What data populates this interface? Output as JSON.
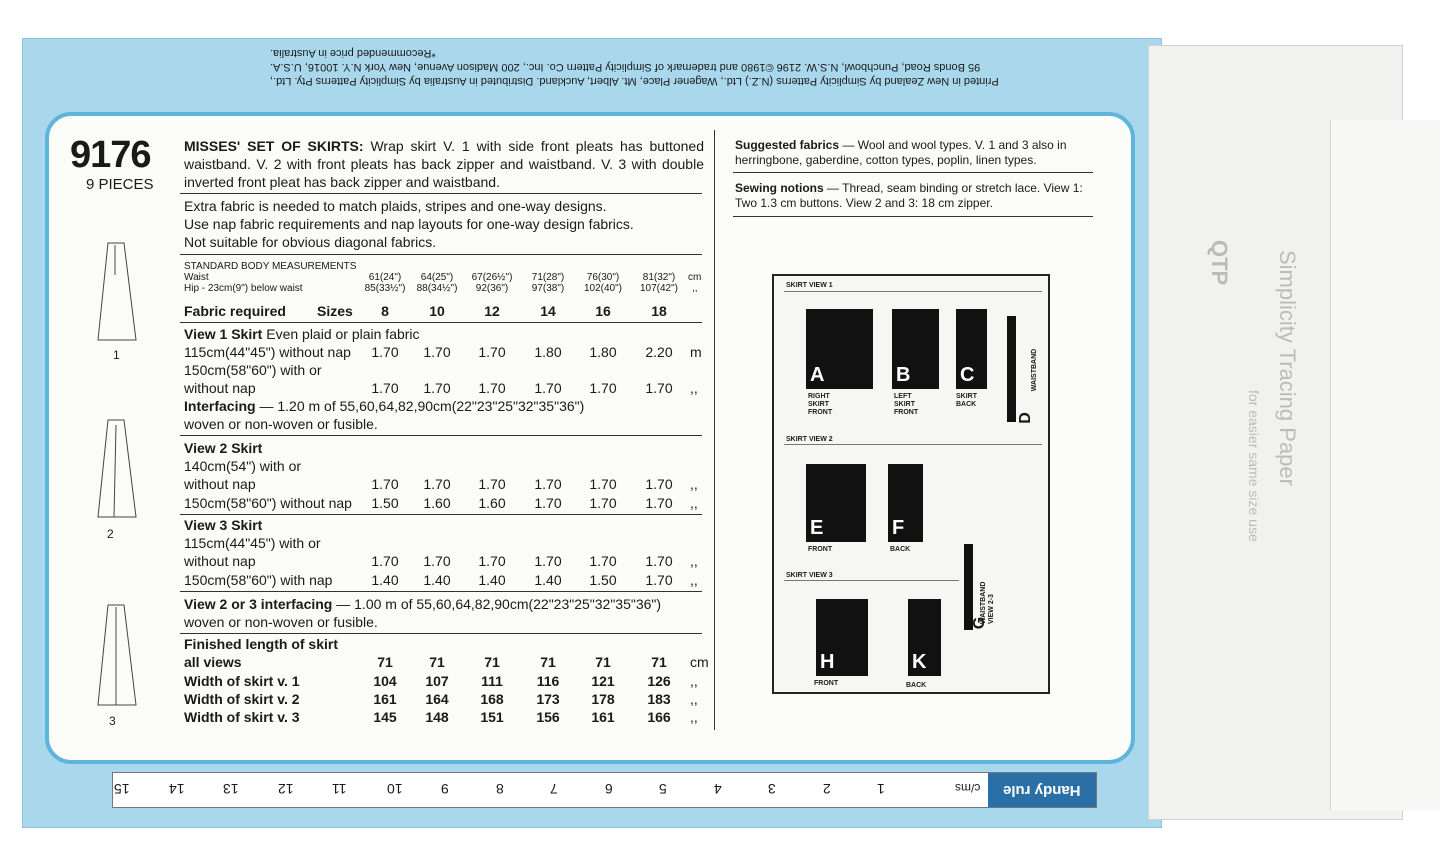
{
  "envelope_top_text": [
    "Printed in New Zealand by Simplicity Patterns (N.Z.) Ltd., Wagener Place, Mt. Albert, Auckland. Distributed in Australia by Simplicity Patterns Pty. Ltd.,",
    "95 Bonds Road, Punchbowl, N.S.W. 2196 ©1980 and trademark of Simplicity Pattern Co. Inc., 200 Madison Avenue, New York N.Y. 10016, U.S.A.",
    "*Recommended price in Australia."
  ],
  "pattern": {
    "number": "9176",
    "pieces": "9 PIECES",
    "view_numbers": [
      "1",
      "2",
      "3"
    ]
  },
  "description": {
    "title": "MISSES' SET OF SKIRTS:",
    "text": "Wrap skirt V. 1 with side front pleats has buttoned waistband. V. 2 with front pleats has back zipper and waistband. V. 3 with double inverted front pleat has back zipper and waistband.",
    "notes": [
      "Extra fabric is needed to match plaids, stripes and one-way designs.",
      "Use nap fabric requirements and nap layouts for one-way design fabrics.",
      "Not suitable for obvious diagonal fabrics."
    ]
  },
  "measurements": {
    "title": "STANDARD BODY MEASUREMENTS",
    "waist_label": "Waist",
    "hip_label": "Hip - 23cm(9\") below waist",
    "waist": [
      "61(24\")",
      "64(25\")",
      "67(26½\")",
      "71(28\")",
      "76(30\")",
      "81(32\")"
    ],
    "hip": [
      "85(33½\")",
      "88(34½\")",
      "92(36\")",
      "97(38\")",
      "102(40\")",
      "107(42\")"
    ],
    "waist_unit": "cm",
    "hip_unit": ",,"
  },
  "fabric_header": {
    "label": "Fabric required",
    "sizes_label": "Sizes",
    "sizes": [
      "8",
      "10",
      "12",
      "14",
      "16",
      "18"
    ]
  },
  "rows": [
    {
      "label": "View 1  Skirt",
      "extra": "Even plaid or plain fabric",
      "bold": true
    },
    {
      "label": "115cm(44\"45\") without nap",
      "values": [
        "1.70",
        "1.70",
        "1.70",
        "1.80",
        "1.80",
        "2.20"
      ],
      "unit": "m"
    },
    {
      "label": "150cm(58\"60\") with or"
    },
    {
      "label": "without nap",
      "values": [
        "1.70",
        "1.70",
        "1.70",
        "1.70",
        "1.70",
        "1.70"
      ],
      "unit": ",,"
    },
    {
      "label": "Interfacing",
      "extra": "— 1.20 m of 55,60,64,82,90cm(22\"23\"25\"32\"35\"36\")",
      "bold": true
    },
    {
      "label": "woven or non-woven or fusible.",
      "rule": true
    },
    {
      "label": "View 2  Skirt",
      "bold": true
    },
    {
      "label": "140cm(54\") with or"
    },
    {
      "label": "without nap",
      "values": [
        "1.70",
        "1.70",
        "1.70",
        "1.70",
        "1.70",
        "1.70"
      ],
      "unit": ",,"
    },
    {
      "label": "150cm(58\"60\") without nap",
      "values": [
        "1.50",
        "1.60",
        "1.60",
        "1.70",
        "1.70",
        "1.70"
      ],
      "unit": ",,",
      "rule": true
    },
    {
      "label": "View 3  Skirt",
      "bold": true
    },
    {
      "label": "115cm(44\"45\") with or"
    },
    {
      "label": "without nap",
      "values": [
        "1.70",
        "1.70",
        "1.70",
        "1.70",
        "1.70",
        "1.70"
      ],
      "unit": ",,"
    },
    {
      "label": "150cm(58\"60\") with nap",
      "values": [
        "1.40",
        "1.40",
        "1.40",
        "1.40",
        "1.50",
        "1.70"
      ],
      "unit": ",,",
      "rule": true
    },
    {
      "label": "View 2 or 3 interfacing",
      "extra": "— 1.00 m of 55,60,64,82,90cm(22\"23\"25\"32\"35\"36\")",
      "bold": true
    },
    {
      "label": "woven or non-woven or fusible.",
      "rule": true
    },
    {
      "label": "Finished length of skirt",
      "bold": true
    },
    {
      "label": "all views",
      "values": [
        "71",
        "71",
        "71",
        "71",
        "71",
        "71"
      ],
      "unit": "cm",
      "bold": true
    },
    {
      "label": "Width of skirt v. 1",
      "values": [
        "104",
        "107",
        "111",
        "116",
        "121",
        "126"
      ],
      "unit": ",,",
      "bold": true
    },
    {
      "label": "Width of skirt v. 2",
      "values": [
        "161",
        "164",
        "168",
        "173",
        "178",
        "183"
      ],
      "unit": ",,",
      "bold": true
    },
    {
      "label": "Width of skirt v. 3",
      "values": [
        "145",
        "148",
        "151",
        "156",
        "161",
        "166"
      ],
      "unit": ",,",
      "bold": true
    }
  ],
  "suggested": {
    "title": "Suggested fabrics",
    "text": "— Wool and wool types. V. 1 and 3 also in herringbone, gaberdine, cotton types, poplin, linen types."
  },
  "notions": {
    "title": "Sewing notions",
    "text": "— Thread, seam binding or stretch lace. View 1: Two 1.3 cm buttons. View 2 and 3: 18 cm zipper."
  },
  "diagram": {
    "view1": "SKIRT  VIEW 1",
    "view2": "SKIRT  VIEW 2",
    "view3": "SKIRT  VIEW 3",
    "pieces": {
      "A": "A",
      "B": "B",
      "C": "C",
      "D": "D",
      "E": "E",
      "F": "F",
      "G": "G",
      "H": "H",
      "K": "K"
    },
    "labels": {
      "A": "RIGHT SKIRT FRONT",
      "B": "LEFT SKIRT FRONT",
      "C": "SKIRT BACK",
      "D": "WAISTBAND",
      "E": "FRONT",
      "F": "BACK",
      "G": "WAISTBAND VIEW 2-3",
      "H": "FRONT",
      "K": "BACK"
    }
  },
  "ruler": {
    "title": "Handy rule",
    "unit": "c/ms",
    "numbers": [
      "1",
      "2",
      "3",
      "4",
      "5",
      "6",
      "7",
      "8",
      "9",
      "10",
      "11",
      "12",
      "13",
      "14",
      "15"
    ]
  },
  "flap": {
    "brand": "Simplicity Tracing Paper",
    "sub": "for easier same size use",
    "code": "QTP"
  },
  "colors": {
    "envelope_blue": "#a9d8ec",
    "border_blue": "#5fb4dc",
    "rule_blue": "#2a6fa6"
  }
}
